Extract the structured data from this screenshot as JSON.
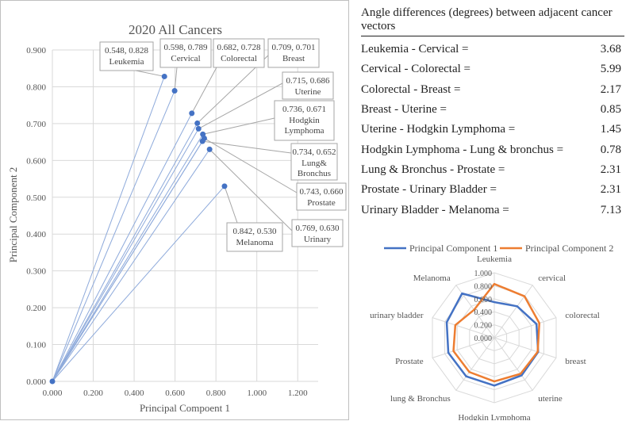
{
  "chart_data": [
    {
      "type": "scatter",
      "title": "2020 All Cancers",
      "xlabel": "Principal Compoent 1",
      "ylabel": "Principal Component 2",
      "xlim": [
        0,
        1.3
      ],
      "ylim": [
        0,
        0.9
      ],
      "x_ticks": [
        "0.000",
        "0.200",
        "0.400",
        "0.600",
        "0.800",
        "1.000",
        "1.200"
      ],
      "y_ticks": [
        "0.000",
        "0.100",
        "0.200",
        "0.300",
        "0.400",
        "0.500",
        "0.600",
        "0.700",
        "0.800",
        "0.900"
      ],
      "points": [
        {
          "name": "Leukemia",
          "x": 0.548,
          "y": 0.828,
          "coord_label": "0.548, 0.828",
          "label_lines": [
            "Leukemia"
          ]
        },
        {
          "name": "Cervical",
          "x": 0.598,
          "y": 0.789,
          "coord_label": "0.598, 0.789",
          "label_lines": [
            "Cervical"
          ]
        },
        {
          "name": "Colorectal",
          "x": 0.682,
          "y": 0.728,
          "coord_label": "0.682, 0.728",
          "label_lines": [
            "Colorectal"
          ]
        },
        {
          "name": "Breast",
          "x": 0.709,
          "y": 0.701,
          "coord_label": "0.709, 0.701",
          "label_lines": [
            "Breast"
          ]
        },
        {
          "name": "Uterine",
          "x": 0.715,
          "y": 0.686,
          "coord_label": "0.715, 0.686",
          "label_lines": [
            "Uterine"
          ]
        },
        {
          "name": "Hodgkin Lymphoma",
          "x": 0.736,
          "y": 0.671,
          "coord_label": "0.736, 0.671",
          "label_lines": [
            "Hodgkin",
            "Lymphoma"
          ]
        },
        {
          "name": "Lung & Bronchus",
          "x": 0.734,
          "y": 0.652,
          "coord_label": "0.734, 0.652",
          "label_lines": [
            "Lung&",
            "Bronchus"
          ]
        },
        {
          "name": "Prostate",
          "x": 0.743,
          "y": 0.66,
          "coord_label": "0.743, 0.660",
          "label_lines": [
            "Prostate"
          ]
        },
        {
          "name": "Urinary",
          "x": 0.769,
          "y": 0.63,
          "coord_label": "0.769, 0.630",
          "label_lines": [
            "Urinary"
          ]
        },
        {
          "name": "Melanoma",
          "x": 0.842,
          "y": 0.53,
          "coord_label": "0.842, 0.530",
          "label_lines": [
            "Melanoma"
          ]
        }
      ],
      "colors": {
        "point": "#4472c4",
        "line": "#8eaadb",
        "callout_border": "#a6a6a6",
        "grid": "#d9d9d9"
      }
    },
    {
      "type": "table",
      "title": "Angle differences (degrees) between adjacent cancer vectors",
      "rows": [
        {
          "label": "Leukemia - Cervical =",
          "value": "3.68"
        },
        {
          "label": "Cervical - Colorectal =",
          "value": "5.99"
        },
        {
          "label": "Colorectal - Breast =",
          "value": "2.17"
        },
        {
          "label": "Breast - Uterine =",
          "value": "0.85"
        },
        {
          "label": "Uterine - Hodgkin Lymphoma =",
          "value": "1.45"
        },
        {
          "label": "Hodgkin Lymphoma - Lung & bronchus =",
          "value": "0.78"
        },
        {
          "label": "Lung & Bronchus - Prostate =",
          "value": "2.31"
        },
        {
          "label": "Prostate - Urinary Bladder =",
          "value": "2.31"
        },
        {
          "label": "Urinary Bladder - Melanoma =",
          "value": "7.13"
        }
      ]
    },
    {
      "type": "radar",
      "categories": [
        "Leukemia",
        "cervical",
        "colorectal",
        "breast",
        "uterine",
        "Hodgkin Lymphoma",
        "lung & Bronchus",
        "Prostate",
        "urinary bladder",
        "Melanoma"
      ],
      "rmax": 1.0,
      "r_ticks": [
        "0.000",
        "0.200",
        "0.400",
        "0.600",
        "0.800",
        "1.000"
      ],
      "series": [
        {
          "name": "Principal Component 1",
          "color": "#4472c4",
          "values": [
            0.548,
            0.598,
            0.682,
            0.709,
            0.715,
            0.736,
            0.734,
            0.743,
            0.769,
            0.842
          ]
        },
        {
          "name": "Principal Component 2",
          "color": "#ed7d31",
          "values": [
            0.828,
            0.789,
            0.728,
            0.701,
            0.686,
            0.671,
            0.652,
            0.66,
            0.63,
            0.53
          ]
        }
      ]
    }
  ]
}
